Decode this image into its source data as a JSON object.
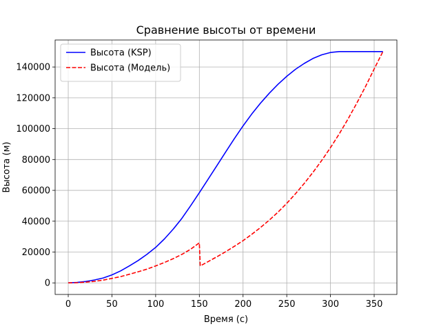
{
  "chart_data": {
    "type": "line",
    "title": "Сравнение высоты от времени",
    "xlabel": "Время (с)",
    "ylabel": "Высота (м)",
    "xlim": [
      -15,
      376
    ],
    "ylim": [
      -7500,
      157500
    ],
    "xticks": [
      0,
      50,
      100,
      150,
      200,
      250,
      300,
      350
    ],
    "yticks": [
      0,
      20000,
      40000,
      60000,
      80000,
      100000,
      120000,
      140000
    ],
    "grid": true,
    "legend_position": "top-left",
    "series": [
      {
        "name": "Высота (KSP)",
        "color": "#0000ff",
        "style": "solid",
        "x": [
          0,
          10,
          20,
          30,
          40,
          50,
          60,
          70,
          80,
          90,
          100,
          110,
          120,
          130,
          140,
          150,
          160,
          170,
          180,
          190,
          200,
          210,
          220,
          230,
          240,
          250,
          260,
          270,
          280,
          290,
          300,
          310,
          320,
          330,
          340,
          350,
          360
        ],
        "y": [
          0,
          300,
          900,
          1900,
          3200,
          5200,
          7800,
          11000,
          14500,
          18500,
          23000,
          28500,
          34800,
          41800,
          50000,
          58500,
          67200,
          76000,
          84800,
          93500,
          101800,
          109500,
          116600,
          123000,
          128800,
          134000,
          138500,
          142300,
          145500,
          147900,
          149400,
          150000,
          150000,
          150000,
          150000,
          150000,
          150000
        ]
      },
      {
        "name": "Высота (Модель)",
        "color": "#ff0000",
        "style": "dashed",
        "x": [
          0,
          10,
          20,
          30,
          40,
          50,
          60,
          70,
          80,
          90,
          100,
          110,
          120,
          130,
          140,
          150,
          151,
          160,
          170,
          180,
          190,
          200,
          210,
          220,
          230,
          240,
          250,
          260,
          270,
          280,
          290,
          300,
          310,
          320,
          330,
          340,
          350,
          360
        ],
        "y": [
          0,
          110,
          450,
          1000,
          1800,
          2900,
          4100,
          5600,
          7200,
          8900,
          11000,
          13200,
          15700,
          18500,
          21800,
          26000,
          11000,
          13800,
          16900,
          20200,
          23700,
          27400,
          31500,
          35900,
          40700,
          45900,
          51600,
          57800,
          64500,
          71700,
          79400,
          87700,
          96600,
          106200,
          116400,
          127200,
          138700,
          150000
        ]
      }
    ]
  }
}
